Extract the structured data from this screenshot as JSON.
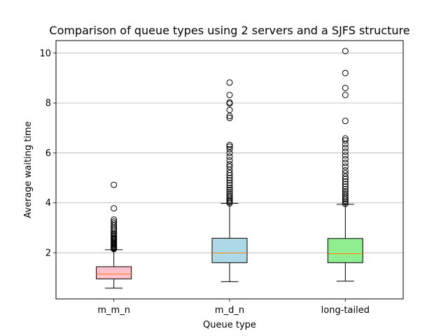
{
  "chart_data": {
    "type": "box",
    "title": "Comparison of queue types using 2 servers and a SJFS structure",
    "xlabel": "Queue type",
    "ylabel": "Average waiting time",
    "ylim": [
      0.15,
      10.5
    ],
    "yticks": [
      2,
      4,
      6,
      8,
      10
    ],
    "grid": "horizontal",
    "categories": [
      "m_m_n",
      "m_d_n",
      "long-tailed"
    ],
    "boxes": [
      {
        "name": "m_m_n",
        "color": "#ffc0cb",
        "whisker_low": 0.58,
        "q1": 0.95,
        "median": 1.15,
        "q3": 1.44,
        "whisker_high": 2.12,
        "outliers": [
          2.15,
          2.18,
          2.2,
          2.23,
          2.26,
          2.3,
          2.33,
          2.36,
          2.4,
          2.44,
          2.48,
          2.52,
          2.56,
          2.6,
          2.65,
          2.7,
          2.75,
          2.8,
          2.88,
          2.95,
          3.02,
          3.1,
          3.18,
          3.25,
          3.33,
          3.78,
          4.72
        ]
      },
      {
        "name": "m_d_n",
        "color": "#add8e6",
        "whisker_low": 0.84,
        "q1": 1.6,
        "median": 1.99,
        "q3": 2.58,
        "whisker_high": 3.98,
        "outliers": [
          3.98,
          4.03,
          4.08,
          4.13,
          4.2,
          4.27,
          4.35,
          4.43,
          4.52,
          4.6,
          4.7,
          4.8,
          4.9,
          5.0,
          5.1,
          5.2,
          5.32,
          5.45,
          5.55,
          5.7,
          5.85,
          6.0,
          6.15,
          6.25,
          6.32,
          7.4,
          7.48,
          7.72,
          7.98,
          8.02,
          8.32,
          8.82
        ]
      },
      {
        "name": "long-tailed",
        "color": "#90ee90",
        "whisker_low": 0.86,
        "q1": 1.6,
        "median": 1.96,
        "q3": 2.57,
        "whisker_high": 3.94,
        "outliers": [
          3.96,
          4.02,
          4.08,
          4.15,
          4.22,
          4.3,
          4.38,
          4.46,
          4.55,
          4.65,
          4.75,
          4.85,
          4.95,
          5.05,
          5.18,
          5.3,
          5.45,
          5.6,
          5.75,
          5.9,
          6.05,
          6.2,
          6.35,
          6.5,
          6.58,
          7.28,
          8.32,
          8.6,
          9.2,
          10.08
        ]
      }
    ]
  }
}
